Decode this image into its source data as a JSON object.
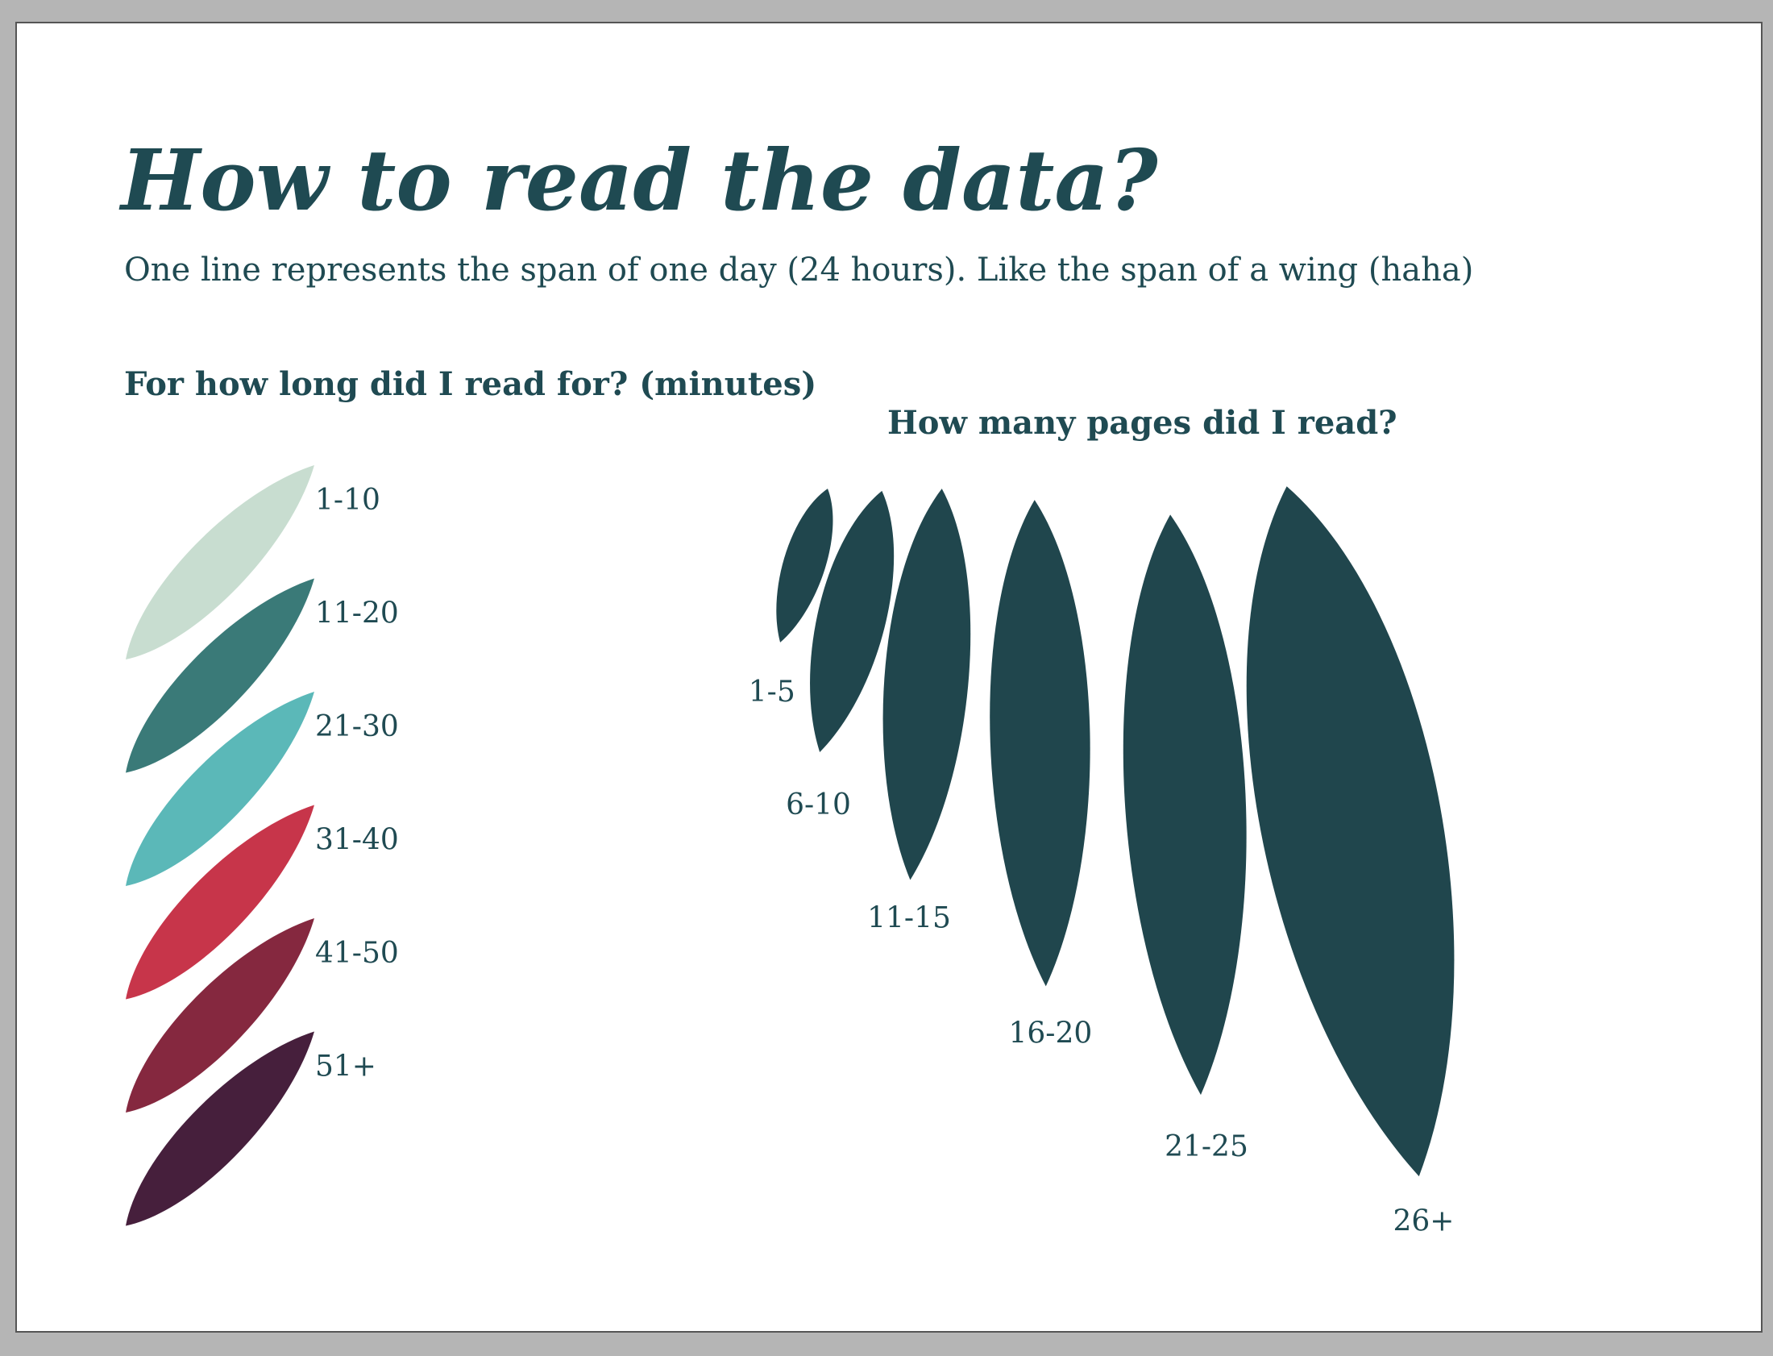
{
  "header": {
    "title": "How to read the data?",
    "subtitle": "One line represents the span of one day (24 hours). Like the span of a wing (haha)"
  },
  "duration": {
    "title": "For how long did I read for? (minutes)",
    "items": [
      {
        "label": "1-10",
        "color": "#c8ddd0"
      },
      {
        "label": "11-20",
        "color": "#3a7a78"
      },
      {
        "label": "21-30",
        "color": "#5bb8b8"
      },
      {
        "label": "31-40",
        "color": "#c7354a"
      },
      {
        "label": "41-50",
        "color": "#85283f"
      },
      {
        "label": "51+",
        "color": "#461f3c"
      }
    ]
  },
  "pages": {
    "title": "How many pages did I read?",
    "color": "#20464d",
    "items": [
      "1-5",
      "6-10",
      "11-15",
      "16-20",
      "21-25",
      "26+"
    ]
  }
}
